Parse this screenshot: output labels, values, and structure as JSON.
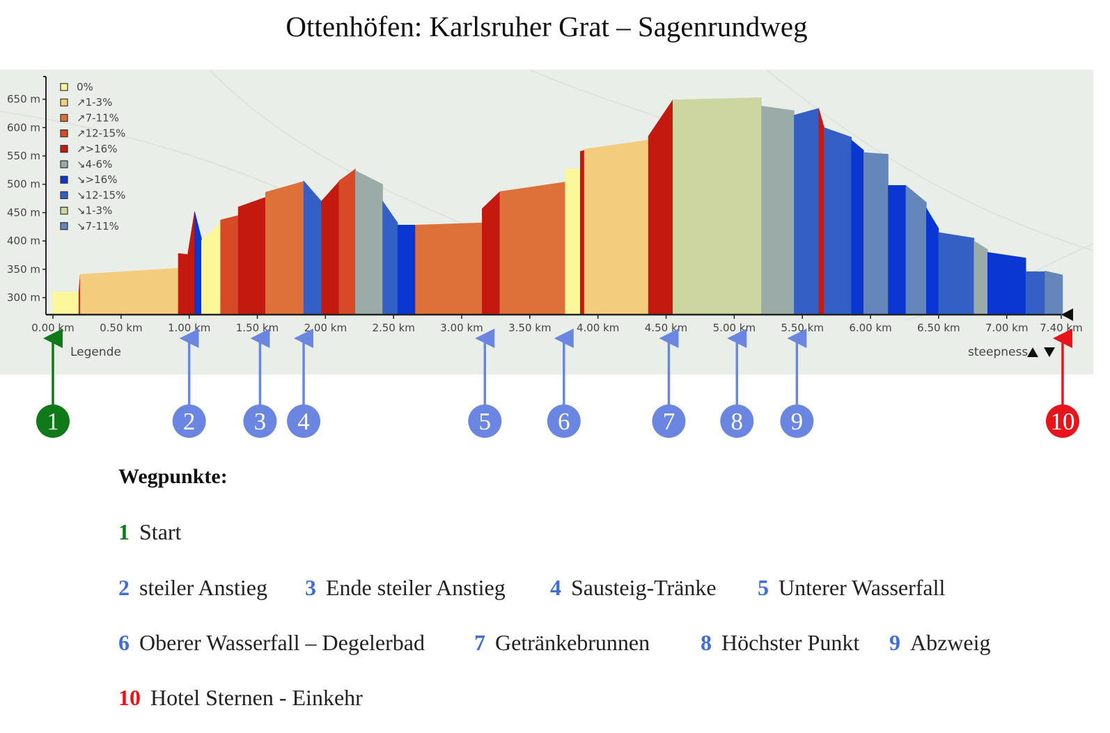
{
  "title": "Ottenhöfen: Karlsruher Grat – Sagenrundweg",
  "colors": {
    "map_bg": "#e9efe8",
    "axis": "#222222",
    "start": "#107a1a",
    "waypoint": "#6a86e0",
    "waypoint_text": "#3f6fd6",
    "end": "#e8141c"
  },
  "chart_data": {
    "type": "area",
    "xlabel": "",
    "ylabel": "",
    "xlim": [
      0,
      7.4
    ],
    "ylim": [
      270,
      690
    ],
    "x_ticks": [
      0,
      0.5,
      1.0,
      1.5,
      2.0,
      2.5,
      3.0,
      3.5,
      4.0,
      4.5,
      5.0,
      5.5,
      6.0,
      6.5,
      7.0,
      7.4
    ],
    "x_tick_labels": [
      "0.00 km",
      "0.50 km",
      "1.00 km",
      "1.50 km",
      "2.00 km",
      "2.50 km",
      "3.00 km",
      "3.50 km",
      "4.00 km",
      "4.50 km",
      "5.00 km",
      "5.50 km",
      "6.00 km",
      "6.50 km",
      "7.00 km",
      "7.40 km"
    ],
    "y_ticks": [
      300,
      350,
      400,
      450,
      500,
      550,
      600,
      650
    ],
    "y_tick_labels": [
      "300 m",
      "350 m",
      "400 m",
      "450 m",
      "500 m",
      "550 m",
      "600 m",
      "650 m"
    ],
    "legend_title": "Legende",
    "legend": [
      {
        "label": "0%",
        "color": "#fbf79a"
      },
      {
        "label": "↗1-3%",
        "color": "#f3cd7d"
      },
      {
        "label": "↗7-11%",
        "color": "#de703a"
      },
      {
        "label": "↗12-15%",
        "color": "#d74a28"
      },
      {
        "label": "↗>16%",
        "color": "#c4190f"
      },
      {
        "label": "↘4-6%",
        "color": "#9aaba8"
      },
      {
        "label": "↘>16%",
        "color": "#0a37d2"
      },
      {
        "label": "↘12-15%",
        "color": "#3460c6"
      },
      {
        "label": "↘1-3%",
        "color": "#cdd6a0"
      },
      {
        "label": "↘7-11%",
        "color": "#6586bb"
      }
    ],
    "steepness_label": "steepness",
    "segments": [
      {
        "x0": 0.0,
        "x1": 0.19,
        "y0": 310,
        "y1": 310,
        "color": "#fbf79a"
      },
      {
        "x0": 0.19,
        "x1": 0.2,
        "y0": 310,
        "y1": 341,
        "color": "#c4190f"
      },
      {
        "x0": 0.2,
        "x1": 0.92,
        "y0": 341,
        "y1": 352,
        "color": "#f3cd7d"
      },
      {
        "x0": 0.92,
        "x1": 0.99,
        "y0": 378,
        "y1": 376,
        "color": "#c4190f"
      },
      {
        "x0": 0.99,
        "x1": 1.04,
        "y0": 378,
        "y1": 452,
        "color": "#c4190f"
      },
      {
        "x0": 1.04,
        "x1": 1.09,
        "y0": 452,
        "y1": 405,
        "color": "#0a37d2"
      },
      {
        "x0": 1.09,
        "x1": 1.23,
        "y0": 401,
        "y1": 432,
        "color": "#fbf79a"
      },
      {
        "x0": 1.23,
        "x1": 1.36,
        "y0": 437,
        "y1": 445,
        "color": "#d74a28"
      },
      {
        "x0": 1.36,
        "x1": 1.56,
        "y0": 460,
        "y1": 477,
        "color": "#c4190f"
      },
      {
        "x0": 1.56,
        "x1": 1.84,
        "y0": 486,
        "y1": 505,
        "color": "#de703a"
      },
      {
        "x0": 1.84,
        "x1": 1.97,
        "y0": 506,
        "y1": 470,
        "color": "#3460c6"
      },
      {
        "x0": 1.97,
        "x1": 2.1,
        "y0": 470,
        "y1": 505,
        "color": "#c4190f"
      },
      {
        "x0": 2.1,
        "x1": 2.22,
        "y0": 506,
        "y1": 527,
        "color": "#d74a28"
      },
      {
        "x0": 2.22,
        "x1": 2.42,
        "y0": 524,
        "y1": 500,
        "color": "#9aaba8"
      },
      {
        "x0": 2.42,
        "x1": 2.53,
        "y0": 470,
        "y1": 432,
        "color": "#3460c6"
      },
      {
        "x0": 2.53,
        "x1": 2.66,
        "y0": 428,
        "y1": 428,
        "color": "#0a37d2"
      },
      {
        "x0": 2.66,
        "x1": 3.15,
        "y0": 428,
        "y1": 432,
        "color": "#de703a"
      },
      {
        "x0": 3.15,
        "x1": 3.28,
        "y0": 457,
        "y1": 487,
        "color": "#c4190f"
      },
      {
        "x0": 3.28,
        "x1": 3.76,
        "y0": 487,
        "y1": 504,
        "color": "#de703a"
      },
      {
        "x0": 3.76,
        "x1": 3.87,
        "y0": 527,
        "y1": 527,
        "color": "#fbf79a"
      },
      {
        "x0": 3.87,
        "x1": 3.9,
        "y0": 558,
        "y1": 560,
        "color": "#c4190f"
      },
      {
        "x0": 3.9,
        "x1": 4.37,
        "y0": 562,
        "y1": 578,
        "color": "#f3cd7d"
      },
      {
        "x0": 4.37,
        "x1": 4.55,
        "y0": 585,
        "y1": 649,
        "color": "#c4190f"
      },
      {
        "x0": 4.55,
        "x1": 5.2,
        "y0": 649,
        "y1": 653,
        "color": "#cdd6a0"
      },
      {
        "x0": 5.2,
        "x1": 5.44,
        "y0": 638,
        "y1": 630,
        "color": "#9aaba8"
      },
      {
        "x0": 5.44,
        "x1": 5.62,
        "y0": 622,
        "y1": 634,
        "color": "#3460c6"
      },
      {
        "x0": 5.62,
        "x1": 5.66,
        "y0": 634,
        "y1": 600,
        "color": "#c4190f"
      },
      {
        "x0": 5.66,
        "x1": 5.86,
        "y0": 600,
        "y1": 583,
        "color": "#3460c6"
      },
      {
        "x0": 5.86,
        "x1": 5.95,
        "y0": 578,
        "y1": 560,
        "color": "#0a37d2"
      },
      {
        "x0": 5.95,
        "x1": 6.13,
        "y0": 556,
        "y1": 553,
        "color": "#6586bb"
      },
      {
        "x0": 6.13,
        "x1": 6.26,
        "y0": 498,
        "y1": 498,
        "color": "#0a37d2"
      },
      {
        "x0": 6.26,
        "x1": 6.41,
        "y0": 498,
        "y1": 468,
        "color": "#6586bb"
      },
      {
        "x0": 6.41,
        "x1": 6.5,
        "y0": 458,
        "y1": 422,
        "color": "#0a37d2"
      },
      {
        "x0": 6.5,
        "x1": 6.76,
        "y0": 415,
        "y1": 405,
        "color": "#3460c6"
      },
      {
        "x0": 6.76,
        "x1": 6.86,
        "y0": 400,
        "y1": 385,
        "color": "#9aaba8"
      },
      {
        "x0": 6.86,
        "x1": 7.14,
        "y0": 380,
        "y1": 370,
        "color": "#0a37d2"
      },
      {
        "x0": 7.14,
        "x1": 7.28,
        "y0": 346,
        "y1": 346,
        "color": "#3460c6"
      },
      {
        "x0": 7.28,
        "x1": 7.41,
        "y0": 347,
        "y1": 340,
        "color": "#6586bb"
      }
    ]
  },
  "markers": [
    {
      "n": "1",
      "km": 0.0,
      "kind": "start"
    },
    {
      "n": "2",
      "km": 1.0,
      "kind": "waypoint"
    },
    {
      "n": "3",
      "km": 1.52,
      "kind": "waypoint"
    },
    {
      "n": "4",
      "km": 1.84,
      "kind": "waypoint"
    },
    {
      "n": "5",
      "km": 3.17,
      "kind": "waypoint"
    },
    {
      "n": "6",
      "km": 3.75,
      "kind": "waypoint"
    },
    {
      "n": "7",
      "km": 4.52,
      "kind": "waypoint"
    },
    {
      "n": "8",
      "km": 5.02,
      "kind": "waypoint"
    },
    {
      "n": "9",
      "km": 5.46,
      "kind": "waypoint"
    },
    {
      "n": "10",
      "km": 7.41,
      "kind": "end"
    }
  ],
  "waypoints": {
    "heading": "Wegpunkte:",
    "rows": [
      [
        {
          "num": "1",
          "label": "Start",
          "kind": "start"
        }
      ],
      [
        {
          "num": "2",
          "label": "steiler Anstieg",
          "kind": "waypoint"
        },
        {
          "num": "3",
          "label": "Ende steiler Anstieg",
          "kind": "waypoint"
        },
        {
          "num": "4",
          "label": "Sausteig-Tränke",
          "kind": "waypoint"
        },
        {
          "num": "5",
          "label": "Unterer Wasserfall",
          "kind": "waypoint"
        }
      ],
      [
        {
          "num": "6",
          "label": "Oberer Wasserfall – Degelerbad",
          "kind": "waypoint"
        },
        {
          "num": "7",
          "label": "Getränkebrunnen",
          "kind": "waypoint"
        },
        {
          "num": "8",
          "label": "Höchster Punkt",
          "kind": "waypoint"
        },
        {
          "num": "9",
          "label": "Abzweig",
          "kind": "waypoint"
        }
      ],
      [
        {
          "num": "10",
          "label": "Hotel Sternen - Einkehr",
          "kind": "end"
        }
      ]
    ]
  }
}
